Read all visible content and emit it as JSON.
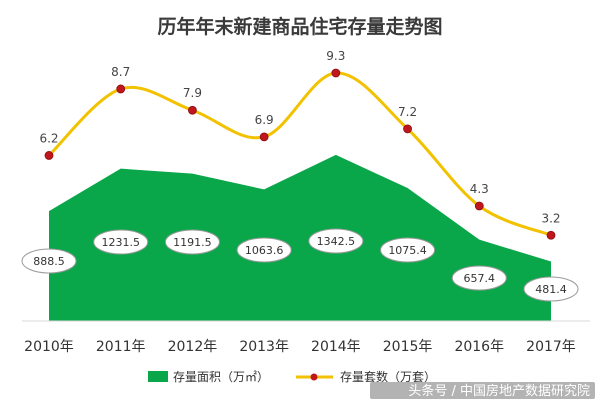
{
  "chart_data": {
    "type": "area",
    "title": "历年年末新建商品住宅存量走势图",
    "categories": [
      "2010年",
      "2011年",
      "2012年",
      "2013年",
      "2014年",
      "2015年",
      "2016年",
      "2017年"
    ],
    "series": [
      {
        "name": "存量面积（万㎡）",
        "type": "area",
        "values": [
          888.5,
          1231.5,
          1191.5,
          1063.6,
          1342.5,
          1075.4,
          657.4,
          481.4
        ],
        "color": "#0aa64a"
      },
      {
        "name": "存量套数（万套）",
        "type": "line",
        "values": [
          6.2,
          8.7,
          7.9,
          6.9,
          9.3,
          7.2,
          4.3,
          3.2
        ],
        "color": "#f2c200",
        "marker_color": "#c0161c"
      }
    ],
    "legend_position": "bottom",
    "grid": false
  },
  "watermark": "头条号 / 中国房地产数据研究院"
}
